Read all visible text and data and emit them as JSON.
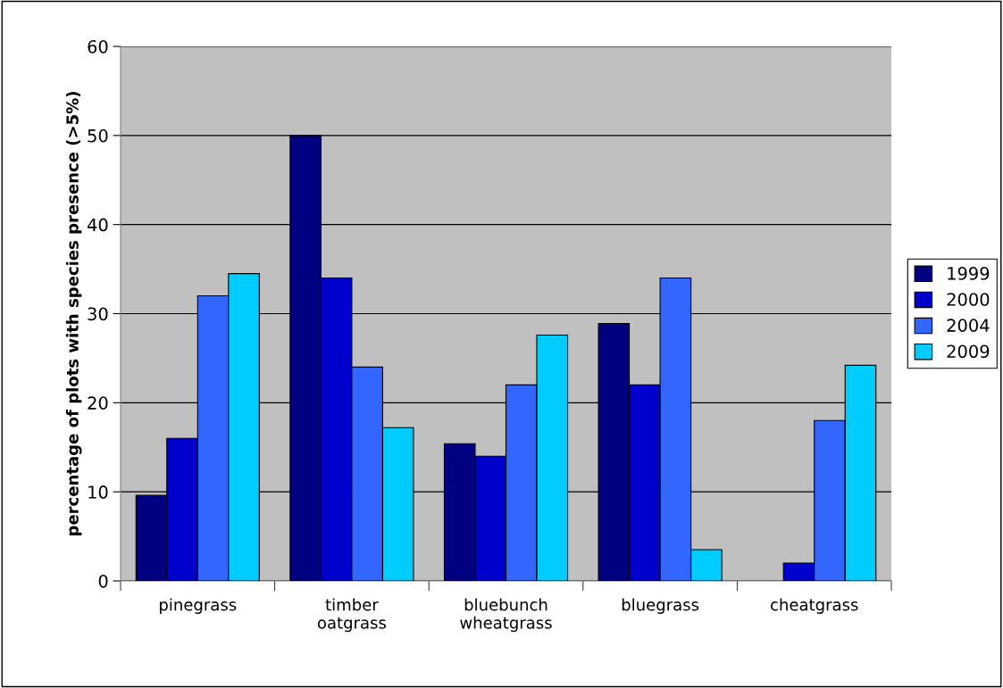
{
  "chart_data": {
    "type": "bar",
    "ylabel": "percentage of plots with species presence (>5%)",
    "categories": [
      "pinegrass",
      "timber\noatgrass",
      "bluebunch\nwheatgrass",
      "bluegrass",
      "cheatgrass"
    ],
    "series": [
      {
        "name": "1999",
        "color": "#000080",
        "values": [
          9.6,
          50,
          15.4,
          28.9,
          null
        ]
      },
      {
        "name": "2000",
        "color": "#0000cc",
        "values": [
          16,
          34,
          14,
          22,
          2
        ]
      },
      {
        "name": "2004",
        "color": "#3366ff",
        "values": [
          32,
          24,
          22,
          34,
          18
        ]
      },
      {
        "name": "2009",
        "color": "#00ccff",
        "values": [
          34.5,
          17.2,
          27.6,
          3.5,
          24.2
        ]
      }
    ],
    "ylim": [
      0,
      60
    ],
    "yticks": [
      0,
      10,
      20,
      30,
      40,
      50,
      60
    ],
    "grid": "y",
    "legend": "right"
  }
}
